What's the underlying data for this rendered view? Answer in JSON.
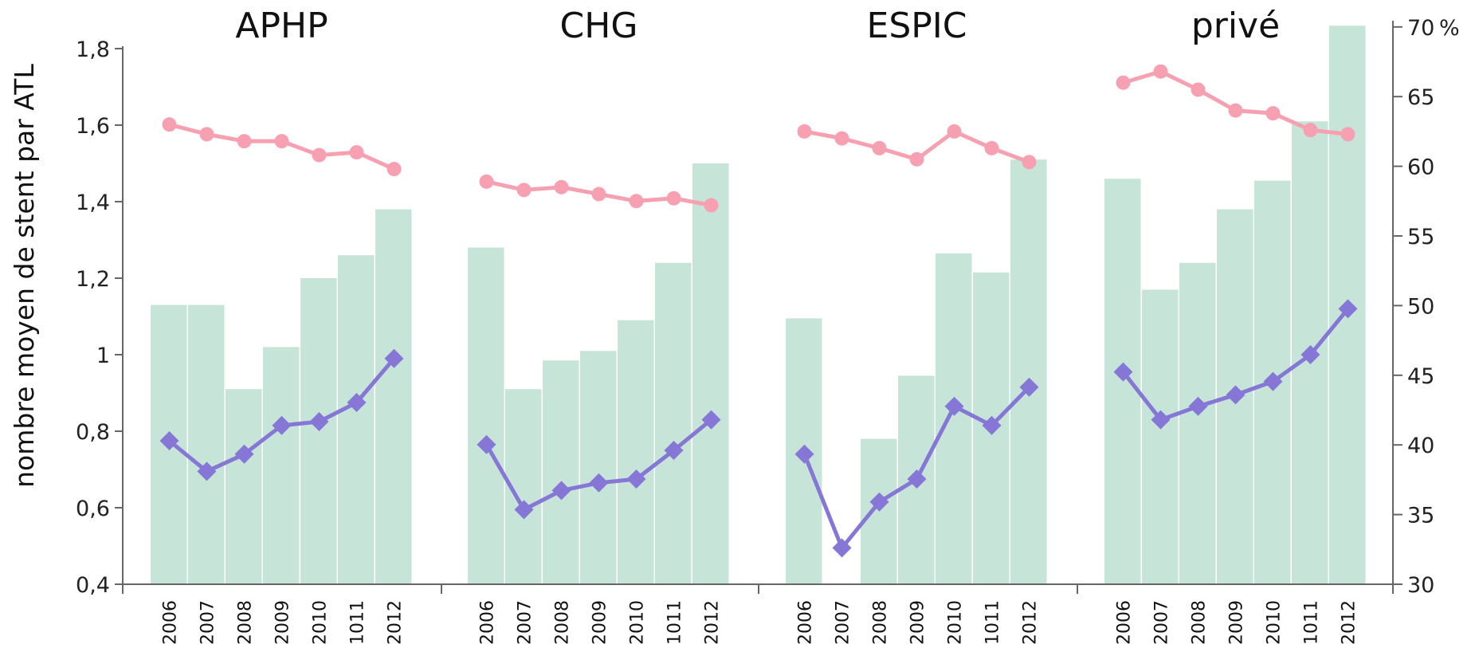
{
  "chart_data": {
    "type": "bar",
    "groups": [
      {
        "title": "APHP",
        "categories": [
          "2006",
          "2007",
          "2008",
          "2009",
          "2010",
          "1011",
          "2012"
        ],
        "bars": [
          1.13,
          1.13,
          0.91,
          1.02,
          1.2,
          1.26,
          1.38
        ],
        "diamond_line": [
          0.775,
          0.695,
          0.74,
          0.815,
          0.825,
          0.875,
          0.99
        ],
        "circle_line_pct": [
          63,
          62.3,
          61.8,
          61.8,
          60.8,
          61,
          59.8
        ]
      },
      {
        "title": "CHG",
        "categories": [
          "2006",
          "2007",
          "2008",
          "2009",
          "2010",
          "1011",
          "2012"
        ],
        "bars": [
          1.28,
          0.91,
          0.985,
          1.01,
          1.09,
          1.24,
          1.5
        ],
        "diamond_line": [
          0.765,
          0.595,
          0.645,
          0.665,
          0.675,
          0.75,
          0.83
        ],
        "circle_line_pct": [
          58.9,
          58.3,
          58.5,
          58,
          57.5,
          57.7,
          57.2
        ]
      },
      {
        "title": "ESPIC",
        "categories": [
          "2006",
          "2007",
          "2008",
          "2009",
          "2010",
          "1011",
          "2012"
        ],
        "bars": [
          1.095,
          0.4,
          0.78,
          0.945,
          1.265,
          1.215,
          1.51
        ],
        "diamond_line": [
          0.74,
          0.495,
          0.615,
          0.675,
          0.865,
          0.815,
          0.915
        ],
        "circle_line_pct": [
          62.5,
          62,
          61.3,
          60.5,
          62.5,
          61.3,
          60.3
        ]
      },
      {
        "title": "privé",
        "categories": [
          "2006",
          "2007",
          "2008",
          "2009",
          "2010",
          "1011",
          "2012"
        ],
        "bars": [
          1.46,
          1.17,
          1.24,
          1.38,
          1.455,
          1.61,
          1.86
        ],
        "diamond_line": [
          0.955,
          0.83,
          0.865,
          0.895,
          0.93,
          1.0,
          1.12
        ],
        "circle_line_pct": [
          66,
          66.8,
          65.5,
          64,
          63.8,
          62.6,
          62.3
        ]
      }
    ],
    "y_left": {
      "label": "nombre moyen de stent par ATL",
      "range": [
        0.4,
        1.8
      ],
      "ticks": [
        "0,4",
        "0,6",
        "0,8",
        "1",
        "1,2",
        "1,4",
        "1,6",
        "1,8"
      ]
    },
    "y_right": {
      "range": [
        30,
        70
      ],
      "unit": "%",
      "ticks": [
        "30",
        "35",
        "40",
        "45",
        "50",
        "55",
        "60",
        "65",
        "70"
      ]
    },
    "colors": {
      "bars": "#c7e4d9",
      "diamond_line": "#8677d6",
      "circle_line": "#f7a0b2"
    }
  }
}
